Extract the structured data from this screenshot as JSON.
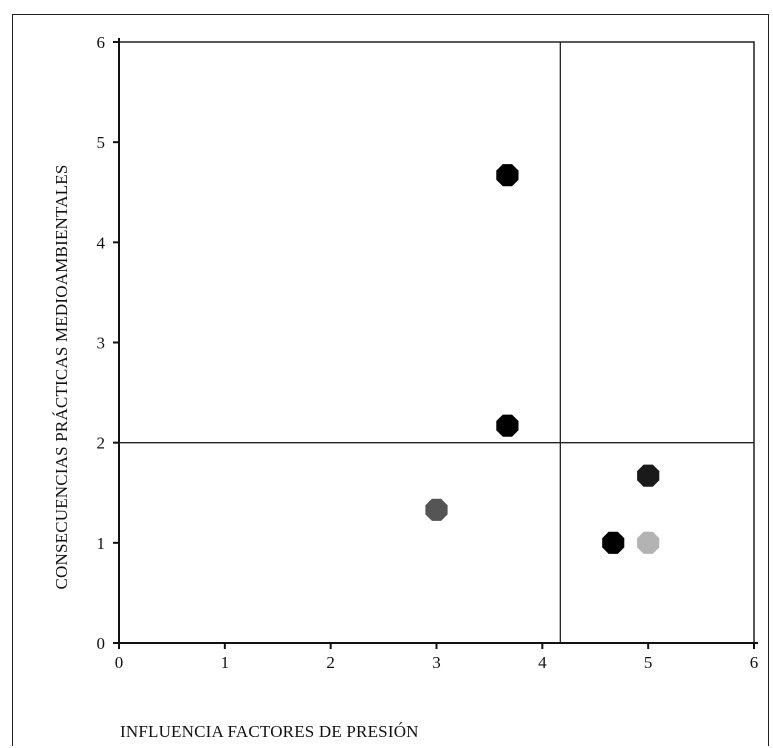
{
  "chart_data": {
    "type": "scatter",
    "title": "",
    "xlabel": "INFLUENCIA FACTORES DE PRESIÓN",
    "ylabel": "CONSECUENCIAS PRÁCTICAS MEDIOAMBIENTALES",
    "xlim": [
      0,
      6
    ],
    "ylim": [
      0,
      6
    ],
    "x_ticks": [
      "0",
      "1",
      "2",
      "3",
      "4",
      "5",
      "6"
    ],
    "y_ticks": [
      "0",
      "1",
      "2",
      "3",
      "4",
      "5",
      "6"
    ],
    "grid": false,
    "legend": "none",
    "reference_lines": {
      "x": 4.17,
      "y": 2.0
    },
    "points": [
      {
        "x": 3.67,
        "y": 4.67,
        "color": "#000000"
      },
      {
        "x": 3.67,
        "y": 2.17,
        "color": "#000000"
      },
      {
        "x": 3.0,
        "y": 1.33,
        "color": "#555555"
      },
      {
        "x": 5.0,
        "y": 1.67,
        "color": "#1a1a1a"
      },
      {
        "x": 4.67,
        "y": 1.0,
        "color": "#000000"
      },
      {
        "x": 5.0,
        "y": 1.0,
        "color": "#b3b3b3"
      }
    ]
  }
}
